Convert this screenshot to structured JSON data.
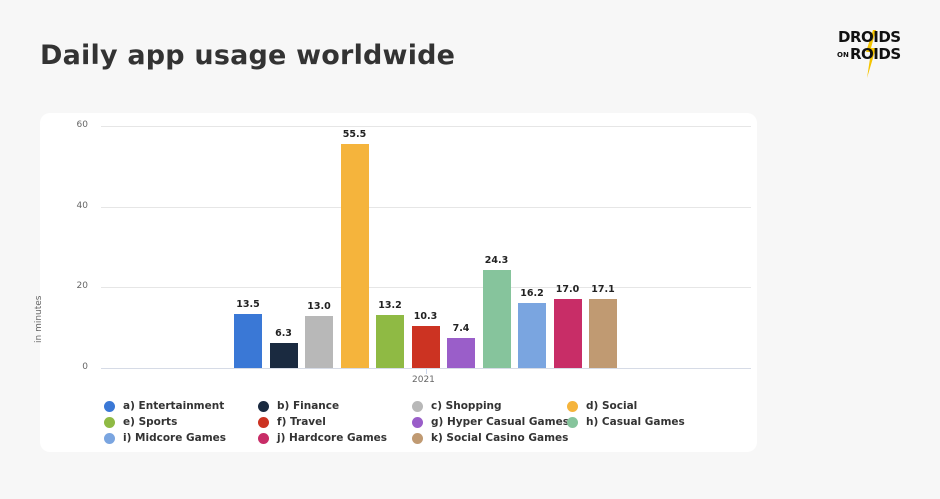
{
  "page": {
    "title": "Daily app usage worldwide",
    "logo": {
      "line1": "DROIDS",
      "small": "ON",
      "line2": "ROIDS"
    }
  },
  "chart_data": {
    "type": "bar",
    "title": "Daily app usage worldwide",
    "xlabel": "",
    "ylabel": "in minutes",
    "ylim": [
      0,
      60
    ],
    "yticks": [
      "0",
      "20",
      "40",
      "60"
    ],
    "categories": [
      "2021"
    ],
    "grid": true,
    "legend_position": "bottom",
    "series": [
      {
        "name": "a) Entertainment",
        "values": [
          13.5
        ],
        "label": "13.5",
        "color": "#3a78d6"
      },
      {
        "name": "b) Finance",
        "values": [
          6.3
        ],
        "label": "6.3",
        "color": "#1a2a40"
      },
      {
        "name": "c) Shopping",
        "values": [
          13.0
        ],
        "label": "13.0",
        "color": "#b8b8b8"
      },
      {
        "name": "d) Social",
        "values": [
          55.5
        ],
        "label": "55.5",
        "color": "#f5b43c"
      },
      {
        "name": "e) Sports",
        "values": [
          13.2
        ],
        "label": "13.2",
        "color": "#8fba44"
      },
      {
        "name": "f) Travel",
        "values": [
          10.3
        ],
        "label": "10.3",
        "color": "#cc3322"
      },
      {
        "name": "g) Hyper Casual Games",
        "values": [
          7.4
        ],
        "label": "7.4",
        "color": "#9a5ec9"
      },
      {
        "name": "h) Casual Games",
        "values": [
          24.3
        ],
        "label": "24.3",
        "color": "#86c49c"
      },
      {
        "name": "i) Midcore Games",
        "values": [
          16.2
        ],
        "label": "16.2",
        "color": "#7aa5e0"
      },
      {
        "name": "j) Hardcore Games",
        "values": [
          17.0
        ],
        "label": "17.0",
        "color": "#c82d67"
      },
      {
        "name": "k) Social Casino Games",
        "values": [
          17.1
        ],
        "label": "17.1",
        "color": "#c09a72"
      }
    ]
  }
}
